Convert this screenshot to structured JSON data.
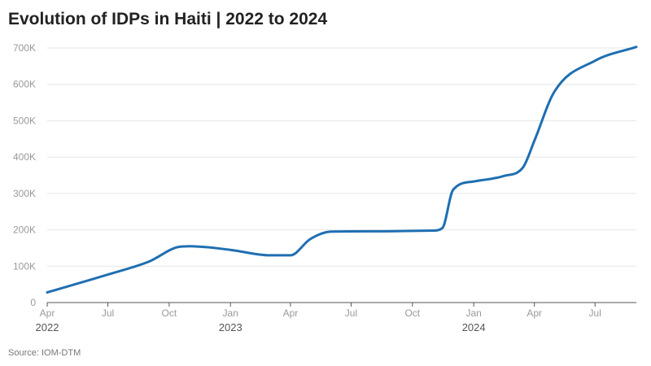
{
  "title": "Evolution of IDPs in Haiti | 2022 to 2024",
  "source": "Source: IOM-DTM",
  "colors": {
    "line": "#1f6fb2",
    "grid": "#e6e6e6",
    "axis": "#555555"
  },
  "chart_data": {
    "type": "line",
    "title": "Evolution of IDPs in Haiti | 2022 to 2024",
    "xlabel": "",
    "ylabel": "",
    "ylim": [
      0,
      700000
    ],
    "xlim": [
      "2022-04-01",
      "2024-09-01"
    ],
    "grid": true,
    "y_ticks": [
      {
        "value": 0,
        "label": "0"
      },
      {
        "value": 100000,
        "label": "100K"
      },
      {
        "value": 200000,
        "label": "200K"
      },
      {
        "value": 300000,
        "label": "300K"
      },
      {
        "value": 400000,
        "label": "400K"
      },
      {
        "value": 500000,
        "label": "500K"
      },
      {
        "value": 600000,
        "label": "600K"
      },
      {
        "value": 700000,
        "label": "700K"
      }
    ],
    "x_ticks": [
      {
        "date": "2022-04-01",
        "label": "Apr",
        "year": "2022"
      },
      {
        "date": "2022-07-01",
        "label": "Jul",
        "year": ""
      },
      {
        "date": "2022-10-01",
        "label": "Oct",
        "year": ""
      },
      {
        "date": "2023-01-01",
        "label": "Jan",
        "year": "2023"
      },
      {
        "date": "2023-04-01",
        "label": "Apr",
        "year": ""
      },
      {
        "date": "2023-07-01",
        "label": "Jul",
        "year": ""
      },
      {
        "date": "2023-10-01",
        "label": "Oct",
        "year": ""
      },
      {
        "date": "2024-01-01",
        "label": "Jan",
        "year": "2024"
      },
      {
        "date": "2024-04-01",
        "label": "Apr",
        "year": ""
      },
      {
        "date": "2024-07-01",
        "label": "Jul",
        "year": ""
      }
    ],
    "series": [
      {
        "points": [
          {
            "x": "2022-04-01",
            "y": 28000
          },
          {
            "x": "2022-07-01",
            "y": 77000
          },
          {
            "x": "2022-09-01",
            "y": 113000
          },
          {
            "x": "2022-10-15",
            "y": 153000
          },
          {
            "x": "2022-11-01",
            "y": 155000
          },
          {
            "x": "2023-01-01",
            "y": 145000
          },
          {
            "x": "2023-03-01",
            "y": 130000
          },
          {
            "x": "2023-04-01",
            "y": 130000
          },
          {
            "x": "2023-05-01",
            "y": 175000
          },
          {
            "x": "2023-06-01",
            "y": 195000
          },
          {
            "x": "2023-08-01",
            "y": 196000
          },
          {
            "x": "2023-11-01",
            "y": 198000
          },
          {
            "x": "2023-11-15",
            "y": 205000
          },
          {
            "x": "2023-12-01",
            "y": 310000
          },
          {
            "x": "2024-01-01",
            "y": 333000
          },
          {
            "x": "2024-02-15",
            "y": 348000
          },
          {
            "x": "2024-03-15",
            "y": 372000
          },
          {
            "x": "2024-04-01",
            "y": 445000
          },
          {
            "x": "2024-05-01",
            "y": 580000
          },
          {
            "x": "2024-07-01",
            "y": 665000
          },
          {
            "x": "2024-09-01",
            "y": 703000
          }
        ]
      }
    ]
  }
}
